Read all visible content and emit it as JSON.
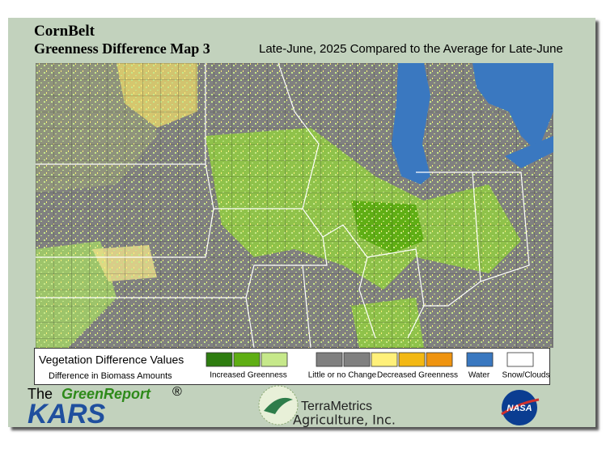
{
  "header": {
    "title": "CornBelt",
    "subtitle": "Greenness Difference Map 3",
    "description": "Late-June, 2025 Compared to the Average for Late-June"
  },
  "legend": {
    "title": "Vegetation Difference Values",
    "subtitle": "Difference in Biomass Amounts",
    "groups": [
      {
        "label": "Increased Greenness",
        "colors": [
          "#2e7d10",
          "#5fae14",
          "#c6e88a"
        ]
      },
      {
        "label": "Little or no Change",
        "colors": [
          "#808080",
          "#808080"
        ]
      },
      {
        "label": "Decreased Greenness",
        "colors": [
          "#fff07a",
          "#f3b814",
          "#ef9410"
        ]
      },
      {
        "label": "Water",
        "colors": [
          "#3a78c0"
        ]
      },
      {
        "label": "Snow/Clouds",
        "colors": [
          "#ffffff"
        ]
      }
    ]
  },
  "logos": {
    "green_report_prefix": "The",
    "green_report": "GreenReport",
    "registered": "®",
    "kars": "KARS",
    "terrametrics": "TerraMetrics",
    "terrametrics_sub": "Agriculture, Inc.",
    "nasa": "NASA"
  }
}
